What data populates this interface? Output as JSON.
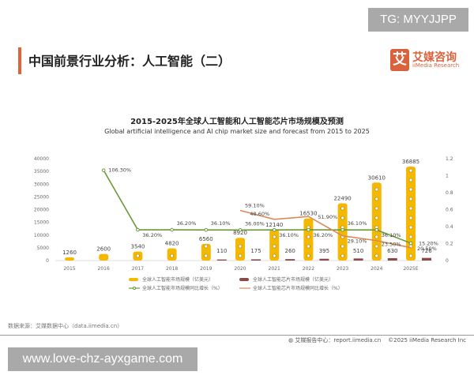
{
  "watermarks": {
    "top": "TG: MYYJJPP",
    "bottom": "www.love-chz-ayxgame.com"
  },
  "header": {
    "title": "中国前景行业分析：人工智能（二）"
  },
  "logo": {
    "mark": "艾",
    "cn": "艾媒咨询",
    "en": "iiMedia Research"
  },
  "footer": {
    "source": "数据来源：艾媒数据中心（data.iimedia.cn）",
    "report": "艾媒报告中心：report.iimedia.cn",
    "copyright": "©2025  iiMedia Research  Inc"
  },
  "colors": {
    "ai_bar": "#f5b800",
    "chip_bar": "#8a4a4a",
    "ai_growth": "#6a9a3a",
    "chip_growth": "#d98a5a",
    "accent": "#e0643a"
  },
  "chart_data": {
    "type": "bar",
    "title": "2015-2025年全球人工智能和人工智能芯片市场规模及预测",
    "subtitle": "Global artificial intelligence and AI chip market size and forecast from 2015 to 2025",
    "categories": [
      "2015",
      "2016",
      "2017",
      "2018",
      "2019",
      "2020",
      "2021",
      "2022",
      "2023",
      "2024",
      "2025E"
    ],
    "y_left": {
      "range": [
        0,
        40000
      ],
      "ticks": [
        "0",
        "5000",
        "10000",
        "15000",
        "20000",
        "25000",
        "30000",
        "35000",
        "40000"
      ]
    },
    "y_right": {
      "range": [
        0,
        1.2
      ],
      "ticks": [
        "0",
        "0.2",
        "0.4",
        "0.6",
        "0.8",
        "1",
        "1.2"
      ]
    },
    "legend_placement": "bottom",
    "series": [
      {
        "name": "全球人工智能市场规模（亿美元）",
        "kind": "bar",
        "axis": "left",
        "values": [
          1260,
          2600,
          3540,
          4820,
          6560,
          8920,
          12140,
          16530,
          22490,
          30610,
          36885
        ]
      },
      {
        "name": "全球人工智能芯片市场规模（亿美元）",
        "kind": "bar",
        "axis": "left",
        "values": [
          null,
          null,
          null,
          null,
          110,
          175,
          260,
          395,
          510,
          630,
          726
        ]
      },
      {
        "name": "全球人工智能市场规模同比增长（%）",
        "kind": "line",
        "axis": "right",
        "values": [
          null,
          106.3,
          36.2,
          36.2,
          36.1,
          36.0,
          36.1,
          36.2,
          36.1,
          36.1,
          20.5
        ]
      },
      {
        "name": "全球人工智能芯片市场规模同比增长（%）",
        "kind": "line",
        "axis": "right",
        "values": [
          null,
          null,
          null,
          null,
          null,
          59.1,
          48.6,
          51.9,
          29.1,
          23.5,
          15.2
        ]
      }
    ]
  }
}
